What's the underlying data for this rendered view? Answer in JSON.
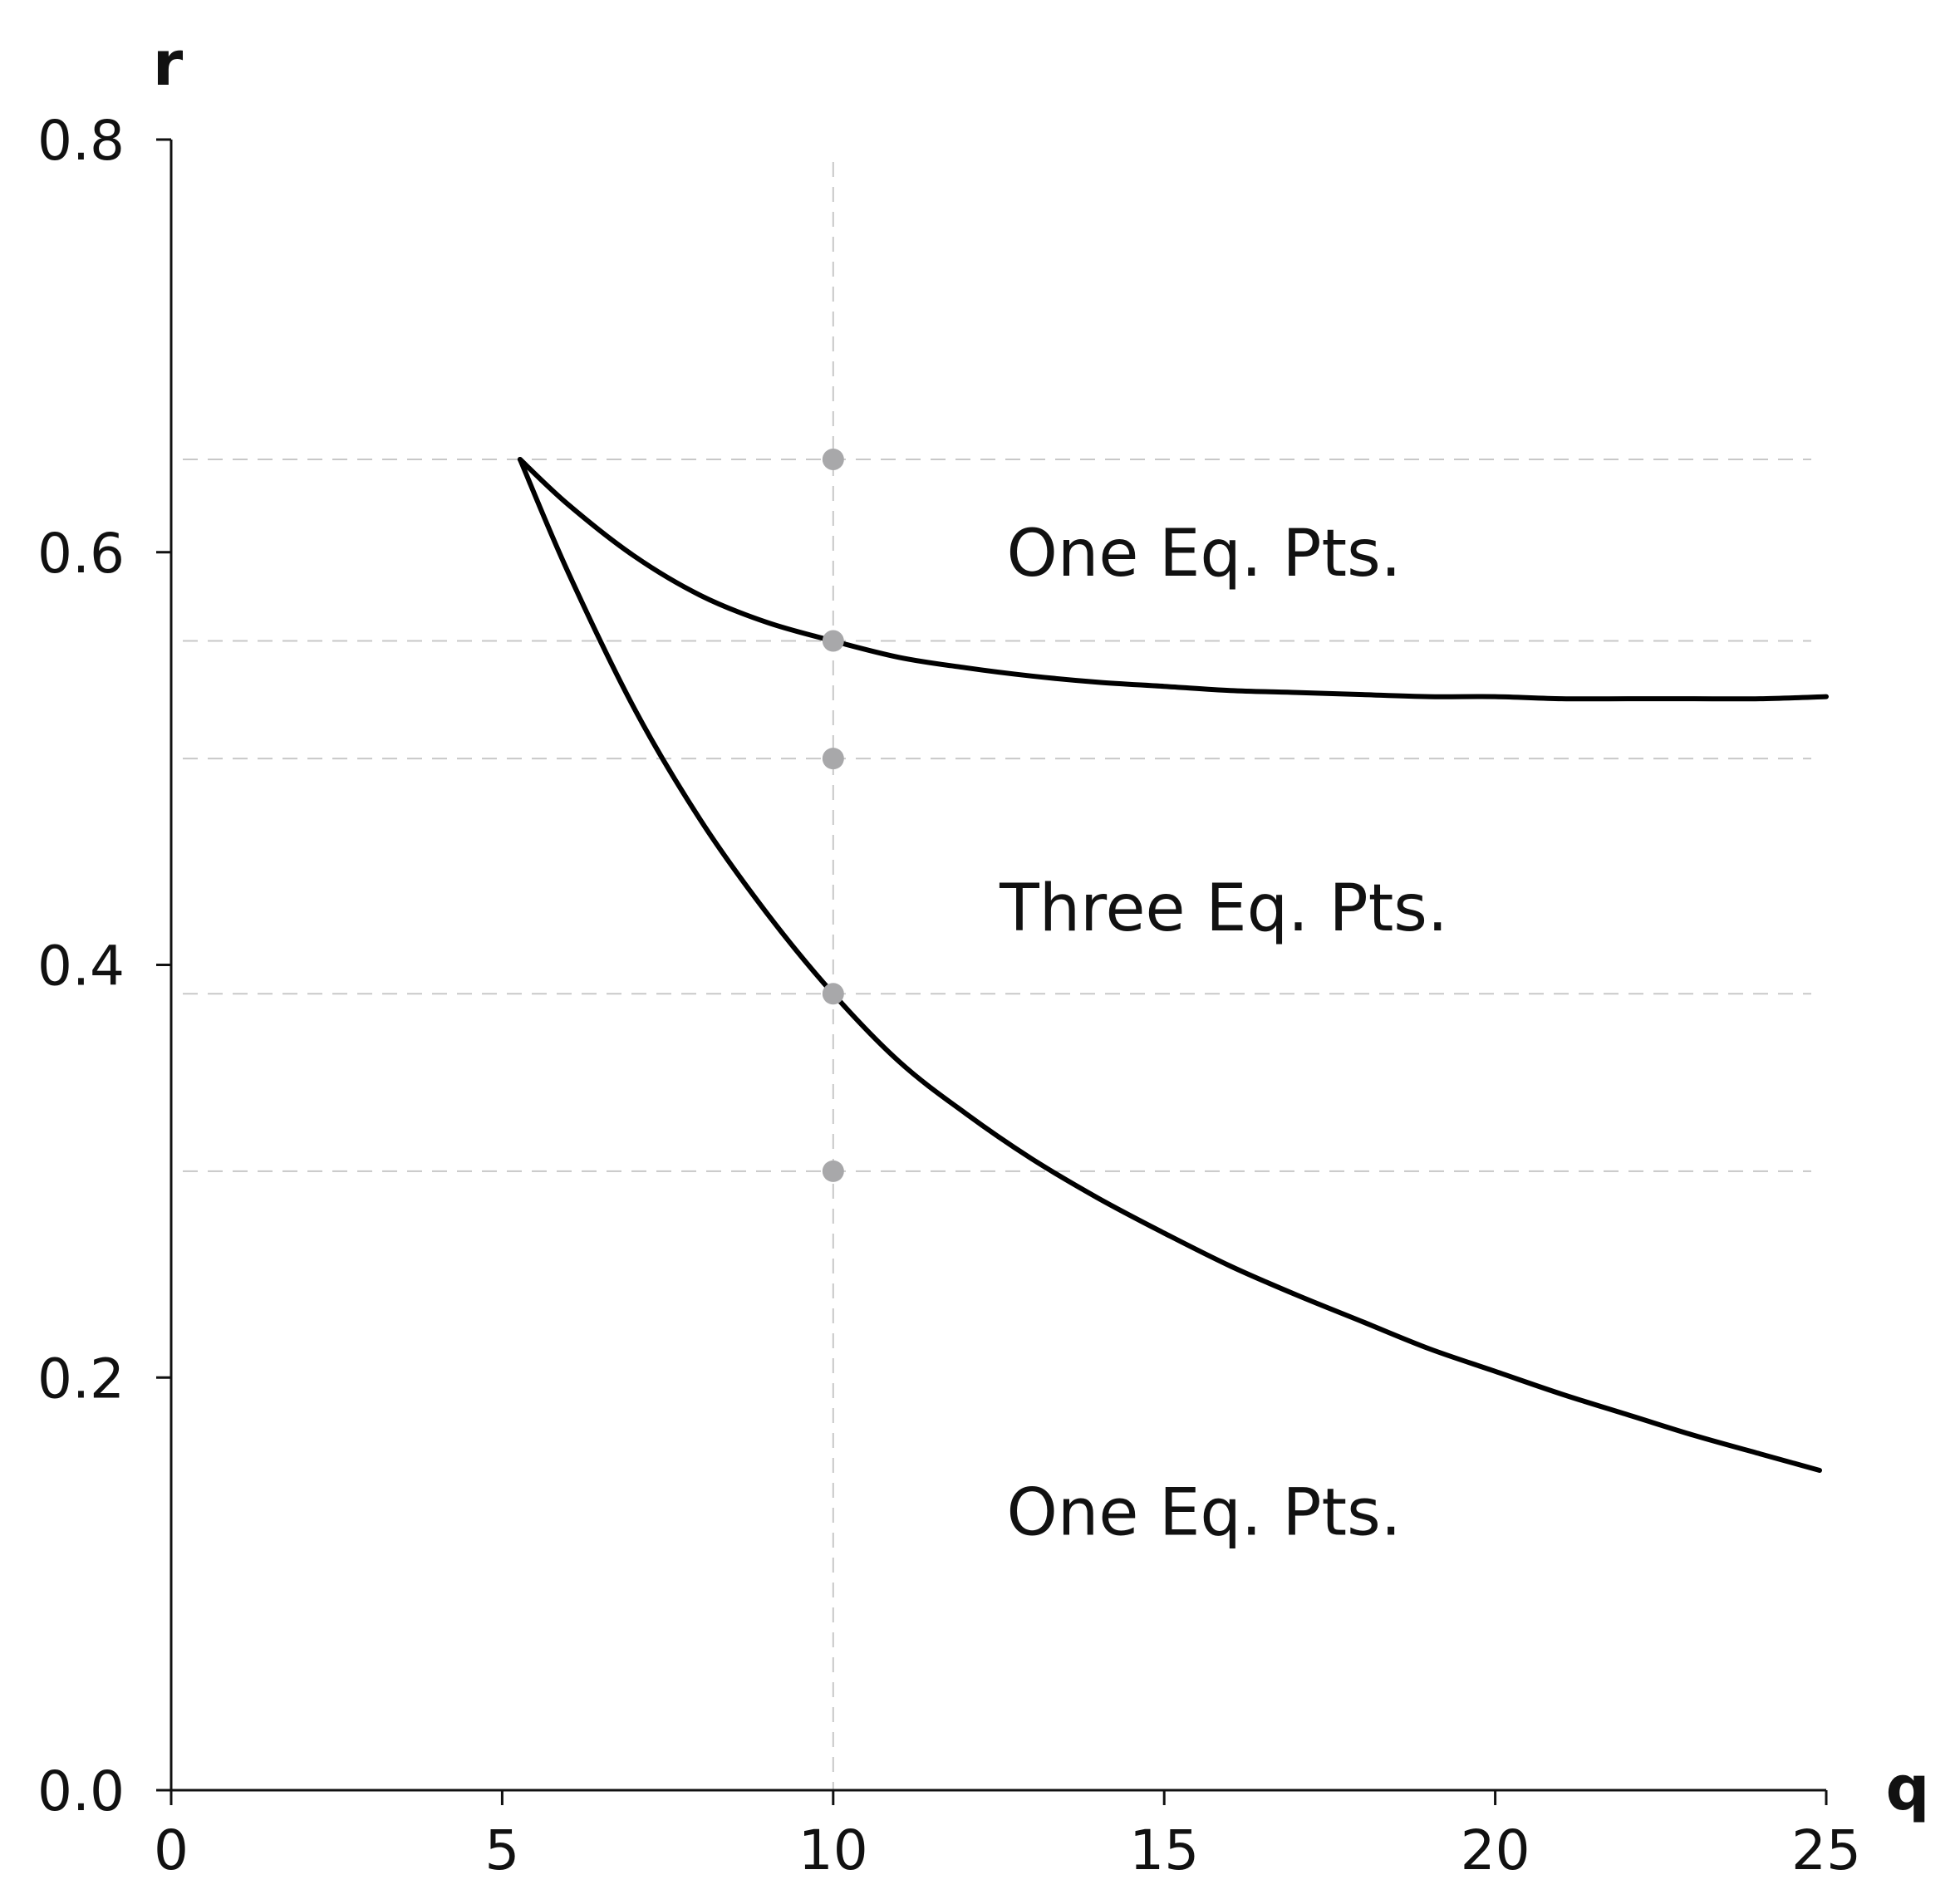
{
  "chart_data": {
    "type": "line",
    "title": "",
    "xlabel": "q",
    "ylabel": "r",
    "xlim": [
      0,
      25
    ],
    "ylim": [
      0,
      0.8
    ],
    "xticks": [
      0,
      5,
      10,
      15,
      20,
      25
    ],
    "xtick_labels": [
      "0",
      "5",
      "10",
      "15",
      "20",
      "25"
    ],
    "yticks": [
      0,
      0.2,
      0.4,
      0.6,
      0.8
    ],
    "ytick_labels": [
      "0.0",
      "0.2",
      "0.4",
      "0.6",
      "0.8"
    ],
    "grid": false,
    "legend": "none",
    "series": [
      {
        "x": [
          5.27,
          6.0,
          7.0,
          8.0,
          9.0,
          10.0,
          11.0,
          12.0,
          13.0,
          14.0,
          15.0,
          16.0,
          17.0,
          18.0,
          19.0,
          20.0,
          21.0,
          22.0,
          23.0,
          24.0,
          25.0
        ],
        "y": [
          0.645,
          0.623,
          0.598,
          0.579,
          0.566,
          0.557,
          0.549,
          0.544,
          0.54,
          0.537,
          0.535,
          0.533,
          0.532,
          0.531,
          0.53,
          0.53,
          0.529,
          0.529,
          0.529,
          0.529,
          0.53
        ],
        "color": "#000000"
      },
      {
        "x": [
          5.27,
          6.0,
          7.0,
          8.0,
          9.0,
          10.0,
          11.0,
          12.0,
          13.0,
          14.0,
          15.0,
          16.0,
          17.0,
          18.0,
          19.0,
          20.0,
          21.0,
          22.0,
          23.0,
          24.0,
          24.9
        ],
        "y": [
          0.645,
          0.59,
          0.524,
          0.47,
          0.425,
          0.386,
          0.353,
          0.328,
          0.306,
          0.287,
          0.27,
          0.254,
          0.24,
          0.227,
          0.214,
          0.203,
          0.192,
          0.182,
          0.172,
          0.163,
          0.155
        ],
        "color": "#000000"
      }
    ],
    "points": {
      "x": [
        10,
        10,
        10,
        10,
        10
      ],
      "y": [
        0.645,
        0.557,
        0.5,
        0.386,
        0.3
      ],
      "color": "#a8a8aa"
    },
    "reference_lines": {
      "horizontal": [
        0.645,
        0.557,
        0.5,
        0.386,
        0.3
      ],
      "vertical": [
        10
      ],
      "color": "#c8c8c8",
      "style": "dashed"
    },
    "annotations": [
      {
        "text": "One Eq. Pts.",
        "x": 15.6,
        "y": 0.6
      },
      {
        "text": "Three Eq. Pts.",
        "x": 15.9,
        "y": 0.428
      },
      {
        "text": "One Eq. Pts.",
        "x": 15.6,
        "y": 0.135
      }
    ]
  }
}
